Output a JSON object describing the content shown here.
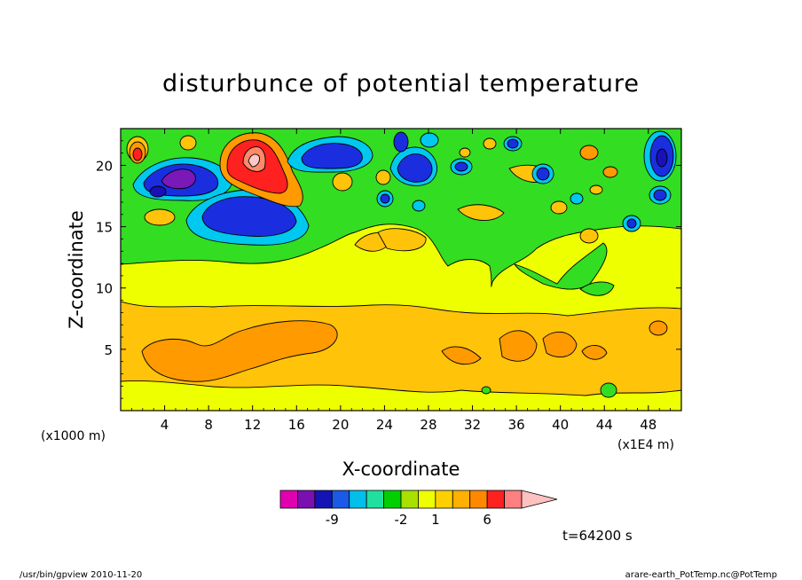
{
  "chart_data": {
    "type": "heatmap",
    "title": "disturbunce of potential temperature",
    "xlabel": "X-coordinate",
    "ylabel": "Z-coordinate",
    "x_unit_label": "(x1E4 m)",
    "y_unit_label": "(x1000 m)",
    "xlim": [
      0,
      51
    ],
    "ylim": [
      0,
      23
    ],
    "x_ticks": [
      "4",
      "8",
      "12",
      "16",
      "20",
      "24",
      "28",
      "32",
      "36",
      "40",
      "44",
      "48"
    ],
    "y_ticks": [
      "5",
      "10",
      "15",
      "20"
    ],
    "x_tick_values": [
      4,
      8,
      12,
      16,
      20,
      24,
      28,
      32,
      36,
      40,
      44,
      48
    ],
    "y_tick_values": [
      5,
      10,
      15,
      20
    ],
    "colorbar": {
      "labels": [
        "-9",
        "-2",
        "1",
        "6"
      ],
      "colors": [
        "#e000b0",
        "#7a10b0",
        "#1414b4",
        "#1a5ae6",
        "#00bfe8",
        "#20e0a0",
        "#00d000",
        "#a8e000",
        "#eeff00",
        "#ffd000",
        "#ffb000",
        "#ff8800",
        "#ff2020",
        "#ff8080",
        "#ffc0c0"
      ]
    },
    "field_colors": {
      "background": "#eeff00",
      "band_light_orange": "#ffc30a",
      "band_orange": "#ff9a00",
      "green": "#33dd22",
      "cyan": "#00c8ee",
      "blue": "#1a2ee0",
      "deep_blue": "#1a10b8",
      "purple": "#7a18b8",
      "red": "#ff2020",
      "salmon": "#ff8a6a",
      "pink": "#ffc8c8"
    }
  },
  "time_label": "t=64200 s",
  "footer_left": "/usr/bin/gpview  2010-11-20",
  "footer_right": "arare-earth_PotTemp.nc@PotTemp"
}
